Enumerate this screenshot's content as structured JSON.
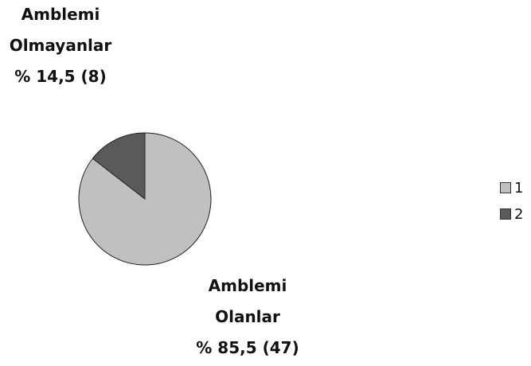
{
  "chart_data": {
    "type": "pie",
    "slices": [
      {
        "legend": "1",
        "value": 85.5,
        "count": 47,
        "label_lines": [
          "Amblemi",
          "Olanlar",
          "% 85,5 (47)"
        ],
        "color": "#c0c0c0"
      },
      {
        "legend": "2",
        "value": 14.5,
        "count": 8,
        "label_lines": [
          "Amblemi",
          "Olmayanlar",
          "% 14,5 (8)"
        ],
        "color": "#5a5a5a"
      }
    ],
    "legend_placement": "right"
  }
}
